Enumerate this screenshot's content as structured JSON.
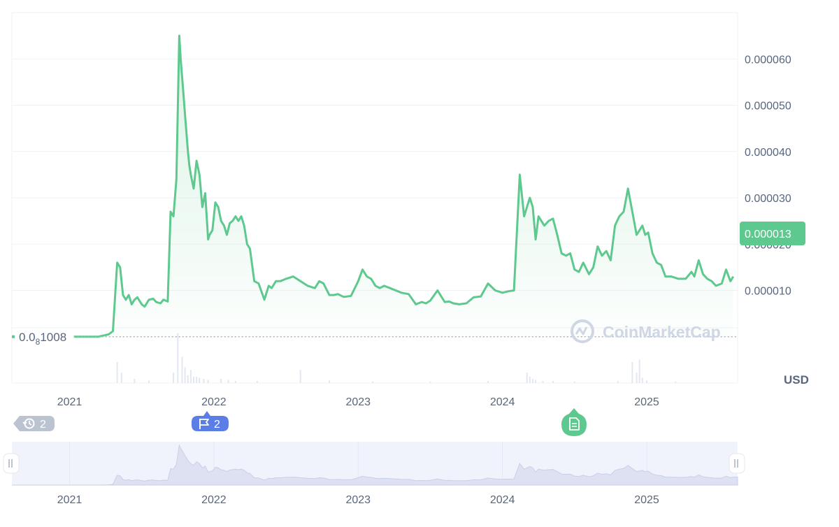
{
  "chart_data": {
    "type": "line",
    "unit_label": "USD",
    "current_price_label": "0.000013",
    "baseline_label": {
      "prefix": "0.0",
      "subscript": "8",
      "suffix": "1008"
    },
    "y_ticks": [
      "0.000060",
      "0.000050",
      "0.000040",
      "0.000030",
      "0.000020",
      "0.000010"
    ],
    "x_ticks": [
      "2021",
      "2022",
      "2023",
      "2024",
      "2025"
    ],
    "navigator_x_ticks": [
      "2021",
      "2022",
      "2023",
      "2024",
      "2025"
    ],
    "ylim": [
      -1e-05,
      7e-05
    ],
    "xlim": [
      2020.6,
      2025.63
    ],
    "grid": true,
    "colors": {
      "line": "#5ec98e",
      "price_tag": "#5ec98e",
      "grid": "#eff2f5",
      "axis_text": "#58667e",
      "navigator_bg": "#f0f3fc",
      "navigator_area": "#dde1f1",
      "events_badge": "#bcc3d0",
      "flag_badge": "#5b7ee6",
      "news_badge": "#5ec98e",
      "watermark": "#cfd6e4"
    },
    "series": [
      {
        "x": [
          2021.03,
          2021.1,
          2021.2,
          2021.27,
          2021.3,
          2021.33,
          2021.35,
          2021.37,
          2021.39,
          2021.41,
          2021.43,
          2021.45,
          2021.47,
          2021.5,
          2021.52,
          2021.55,
          2021.58,
          2021.6,
          2021.63,
          2021.65,
          2021.68,
          2021.7,
          2021.72,
          2021.74,
          2021.76,
          2021.77,
          2021.79,
          2021.8,
          2021.82,
          2021.83,
          2021.84,
          2021.86,
          2021.88,
          2021.9,
          2021.92,
          2021.94,
          2021.96,
          2021.97,
          2021.99,
          2022.01,
          2022.03,
          2022.05,
          2022.07,
          2022.09,
          2022.11,
          2022.13,
          2022.15,
          2022.17,
          2022.19,
          2022.21,
          2022.23,
          2022.25,
          2022.28,
          2022.31,
          2022.35,
          2022.38,
          2022.4,
          2022.43,
          2022.46,
          2022.5,
          2022.55,
          2022.6,
          2022.65,
          2022.7,
          2022.73,
          2022.76,
          2022.8,
          2022.83,
          2022.86,
          2022.9,
          2022.95,
          2023.0,
          2023.03,
          2023.06,
          2023.09,
          2023.12,
          2023.15,
          2023.18,
          2023.22,
          2023.26,
          2023.3,
          2023.35,
          2023.4,
          2023.44,
          2023.47,
          2023.5,
          2023.55,
          2023.6,
          2023.63,
          2023.66,
          2023.7,
          2023.75,
          2023.8,
          2023.85,
          2023.9,
          2023.95,
          2024.0,
          2024.04,
          2024.08,
          2024.12,
          2024.15,
          2024.17,
          2024.19,
          2024.21,
          2024.23,
          2024.25,
          2024.27,
          2024.29,
          2024.32,
          2024.35,
          2024.38,
          2024.41,
          2024.44,
          2024.47,
          2024.5,
          2024.53,
          2024.56,
          2024.6,
          2024.63,
          2024.66,
          2024.69,
          2024.72,
          2024.75,
          2024.78,
          2024.81,
          2024.84,
          2024.87,
          2024.9,
          2024.93,
          2024.95,
          2024.97,
          2024.99,
          2025.01,
          2025.04,
          2025.07,
          2025.1,
          2025.13,
          2025.17,
          2025.22,
          2025.27,
          2025.31,
          2025.33,
          2025.36,
          2025.39,
          2025.42,
          2025.45,
          2025.48,
          2025.52,
          2025.55,
          2025.58,
          2025.6
        ],
        "y": [
          1e-08,
          1e-08,
          1e-08,
          5e-07,
          1.2e-06,
          1.6e-05,
          1.5e-05,
          9e-06,
          8e-06,
          9e-06,
          7e-06,
          8e-06,
          8.5e-06,
          7e-06,
          6.5e-06,
          8e-06,
          8.2e-06,
          7.5e-06,
          7.2e-06,
          8e-06,
          7.6e-06,
          2.7e-05,
          2.6e-05,
          3.4e-05,
          6.5e-05,
          6e-05,
          5.2e-05,
          4.8e-05,
          4e-05,
          3.7e-05,
          3.5e-05,
          3.2e-05,
          3.8e-05,
          3.5e-05,
          2.8e-05,
          3.1e-05,
          2.1e-05,
          2.2e-05,
          2.3e-05,
          2.9e-05,
          2.8e-05,
          2.5e-05,
          2.4e-05,
          2.2e-05,
          2.45e-05,
          2.5e-05,
          2.6e-05,
          2.5e-05,
          2.6e-05,
          2.4e-05,
          2e-05,
          1.9e-05,
          1.2e-05,
          1.15e-05,
          8e-06,
          1.1e-05,
          1.05e-05,
          1.2e-05,
          1.2e-05,
          1.25e-05,
          1.3e-05,
          1.2e-05,
          1.1e-05,
          1.05e-05,
          1.2e-05,
          1.15e-05,
          9e-06,
          9e-06,
          9.2e-06,
          8.6e-06,
          8.8e-06,
          1.2e-05,
          1.45e-05,
          1.3e-05,
          1.25e-05,
          1.1e-05,
          1.05e-05,
          1.1e-05,
          1.05e-05,
          1e-05,
          9.5e-06,
          9.2e-06,
          7e-06,
          7.5e-06,
          7.2e-06,
          7.8e-06,
          1e-05,
          7.5e-06,
          7.6e-06,
          7.2e-06,
          7e-06,
          7.2e-06,
          8.5e-06,
          8.7e-06,
          1.15e-05,
          1e-05,
          9.5e-06,
          9.8e-06,
          1e-05,
          3.5e-05,
          2.6e-05,
          2.8e-05,
          3e-05,
          2.8e-05,
          2.1e-05,
          2.6e-05,
          2.5e-05,
          2.4e-05,
          2.5e-05,
          2.55e-05,
          2.2e-05,
          1.8e-05,
          1.75e-05,
          1.8e-05,
          1.45e-05,
          1.4e-05,
          1.6e-05,
          1.35e-05,
          1.5e-05,
          1.95e-05,
          1.75e-05,
          1.85e-05,
          1.65e-05,
          2.4e-05,
          2.6e-05,
          2.7e-05,
          3.2e-05,
          2.7e-05,
          2.2e-05,
          2.3e-05,
          2.4e-05,
          2.2e-05,
          2.25e-05,
          1.8e-05,
          1.6e-05,
          1.55e-05,
          1.3e-05,
          1.3e-05,
          1.25e-05,
          1.25e-05,
          1.4e-05,
          1.3e-05,
          1.65e-05,
          1.35e-05,
          1.25e-05,
          1.2e-05,
          1.1e-05,
          1.15e-05,
          1.45e-05,
          1.2e-05,
          1.3e-05
        ]
      }
    ],
    "volume": {
      "x": [
        2021.33,
        2021.36,
        2021.45,
        2021.55,
        2021.72,
        2021.75,
        2021.78,
        2021.8,
        2021.82,
        2021.84,
        2021.86,
        2021.88,
        2021.9,
        2021.93,
        2021.96,
        2022.05,
        2022.1,
        2022.15,
        2022.3,
        2022.6,
        2022.8,
        2023.1,
        2023.5,
        2023.9,
        2024.17,
        2024.19,
        2024.21,
        2024.23,
        2024.28,
        2024.35,
        2024.5,
        2024.8,
        2024.9,
        2024.93,
        2024.95,
        2024.97,
        2025.0,
        2025.2
      ],
      "y": [
        0.4,
        0.2,
        0.08,
        0.05,
        0.2,
        0.95,
        0.5,
        0.3,
        0.15,
        0.25,
        0.12,
        0.12,
        0.1,
        0.08,
        0.06,
        0.08,
        0.06,
        0.04,
        0.04,
        0.25,
        0.05,
        0.03,
        0.03,
        0.04,
        0.2,
        0.12,
        0.08,
        0.06,
        0.04,
        0.04,
        0.03,
        0.04,
        0.4,
        0.2,
        0.45,
        0.1,
        0.05,
        0.03
      ]
    },
    "badges": [
      {
        "kind": "history",
        "icon": "history-icon",
        "count": "2"
      },
      {
        "kind": "flag",
        "icon": "flag-icon",
        "count": "2"
      },
      {
        "kind": "news",
        "icon": "document-icon"
      }
    ],
    "watermark": "CoinMarketCap"
  }
}
